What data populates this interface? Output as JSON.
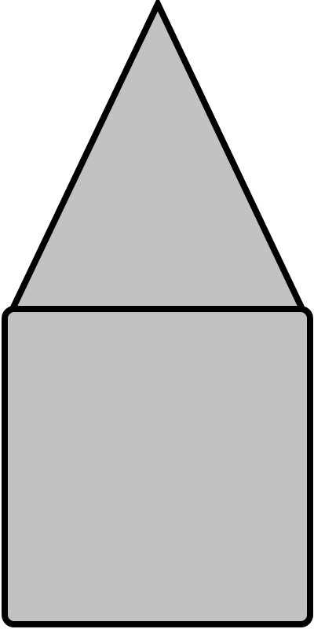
{
  "shapes": {
    "fill_color": "#c2c2c2",
    "stroke_color": "#000000",
    "items": [
      "triangle",
      "rounded-rectangle"
    ]
  }
}
